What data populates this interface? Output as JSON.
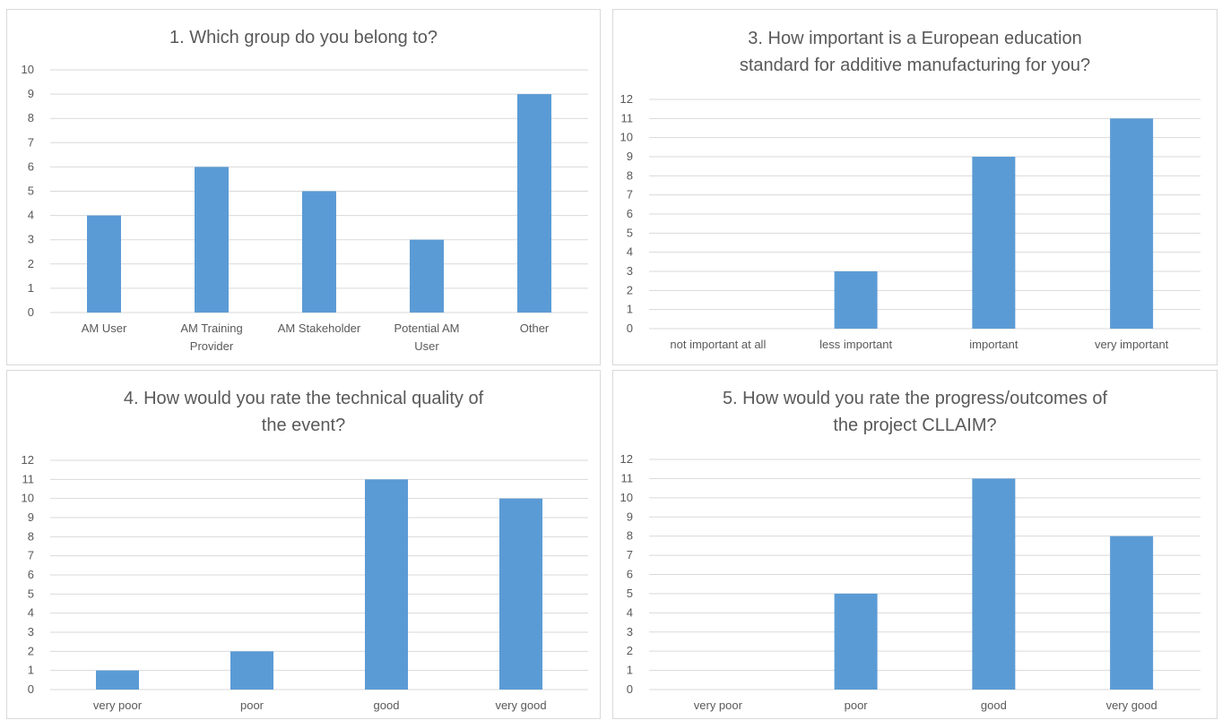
{
  "colors": {
    "bar": "#5b9bd5",
    "grid": "#d9d9d9",
    "text": "#595959"
  },
  "chart_data": [
    {
      "type": "bar",
      "title": "1. Which group do you belong to?",
      "categories": [
        "AM User",
        "AM Training Provider",
        "AM Stakeholder",
        "Potential AM User",
        "Other"
      ],
      "category_lines": [
        [
          "AM User"
        ],
        [
          "AM Training",
          "Provider"
        ],
        [
          "AM Stakeholder"
        ],
        [
          "Potential AM",
          "User"
        ],
        [
          "Other"
        ]
      ],
      "values": [
        4,
        6,
        5,
        3,
        9
      ],
      "ylim": [
        0,
        10
      ],
      "grid": true
    },
    {
      "type": "bar",
      "title": "3. How important is a European education\nstandard for additive manufacturing for you?",
      "categories": [
        "not important at all",
        "less important",
        "important",
        "very important"
      ],
      "category_lines": [
        [
          "not important at all"
        ],
        [
          "less important"
        ],
        [
          "important"
        ],
        [
          "very important"
        ]
      ],
      "values": [
        0,
        3,
        9,
        11
      ],
      "ylim": [
        0,
        12
      ],
      "grid": true
    },
    {
      "type": "bar",
      "title": "4. How would you rate the technical quality of\nthe event?",
      "categories": [
        "very poor",
        "poor",
        "good",
        "very good"
      ],
      "category_lines": [
        [
          "very poor"
        ],
        [
          "poor"
        ],
        [
          "good"
        ],
        [
          "very good"
        ]
      ],
      "values": [
        1,
        2,
        11,
        10
      ],
      "ylim": [
        0,
        12
      ],
      "grid": true
    },
    {
      "type": "bar",
      "title": "5. How would you rate the progress/outcomes of\nthe project CLLAIM?",
      "categories": [
        "very poor",
        "poor",
        "good",
        "very good"
      ],
      "category_lines": [
        [
          "very poor"
        ],
        [
          "poor"
        ],
        [
          "good"
        ],
        [
          "very good"
        ]
      ],
      "values": [
        0,
        5,
        11,
        8
      ],
      "ylim": [
        0,
        12
      ],
      "grid": true
    }
  ]
}
